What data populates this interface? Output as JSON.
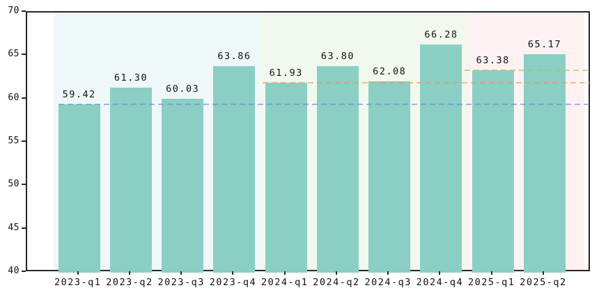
{
  "chart_data": {
    "type": "bar",
    "title": "",
    "xlabel": "",
    "ylabel": "",
    "categories": [
      "2023-q1",
      "2023-q2",
      "2023-q3",
      "2023-q4",
      "2024-q1",
      "2024-q2",
      "2024-q3",
      "2024-q4",
      "2025-q1",
      "2025-q2"
    ],
    "values": [
      59.42,
      61.3,
      60.03,
      63.86,
      61.93,
      63.8,
      62.08,
      66.28,
      63.38,
      65.17
    ],
    "value_labels": [
      "59.42",
      "61.30",
      "60.03",
      "63.86",
      "61.93",
      "63.80",
      "62.08",
      "66.28",
      "63.38",
      "65.17"
    ],
    "ylim": [
      40,
      70
    ],
    "yticks": [
      40,
      45,
      50,
      55,
      60,
      65,
      70
    ],
    "grid": false,
    "legend": null,
    "bar_color": "#8bcfc4",
    "regions": [
      {
        "name": "year-2023",
        "from_unit": -0.5,
        "to_unit": 3.5,
        "color": "#eff8f9"
      },
      {
        "name": "year-2024",
        "from_unit": 3.5,
        "to_unit": 7.5,
        "color": "#f1f8ee"
      },
      {
        "name": "year-2025",
        "from_unit": 7.5,
        "to_unit": 9.77,
        "color": "#fdf2f1"
      }
    ],
    "reference_lines": [
      {
        "name": "baseline-2023-q1",
        "value": 59.42,
        "color": "rgba(110,132,205,0.6)",
        "from_unit": -0.4,
        "to_unit": 9.87
      },
      {
        "name": "baseline-2024-q1",
        "value": 61.93,
        "color": "rgba(242,148,62,0.6)",
        "from_unit": 3.55,
        "to_unit": 9.87
      },
      {
        "name": "baseline-2025-q1",
        "value": 63.38,
        "color": "rgba(165,195,90,0.65)",
        "from_unit": 7.45,
        "to_unit": 9.87
      }
    ]
  }
}
